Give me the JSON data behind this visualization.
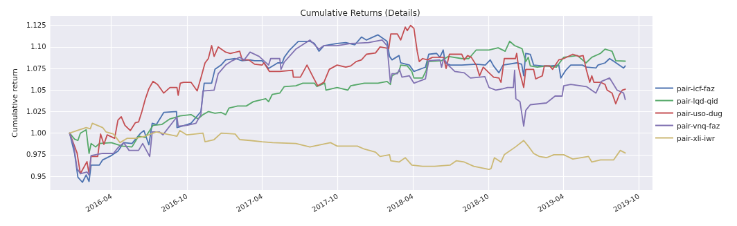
{
  "chart_data": {
    "type": "line",
    "title": "Cumulative Returns (Details)",
    "ylabel": "Cumulative return",
    "xlim": [
      "2015-11-05",
      "2019-11-03"
    ],
    "ylim": [
      0.934,
      1.136
    ],
    "xticks": [
      "2016-04",
      "2016-10",
      "2017-04",
      "2017-10",
      "2018-04",
      "2018-10",
      "2019-04",
      "2019-10"
    ],
    "yticks": [
      0.95,
      0.975,
      {
        "value": 1.0,
        "label": "1.00"
      },
      1.025,
      1.05,
      1.075,
      {
        "value": 1.1,
        "label": "1.10"
      },
      1.125
    ],
    "grid": true,
    "legend": "right",
    "line_style": "solid",
    "marker": "none",
    "series": [
      {
        "name": "pair-icf-faz",
        "color": "#4c72b0",
        "x": [
          "2015-12-22",
          "2016-01-03",
          "2016-01-11",
          "2016-01-22",
          "2016-01-31",
          "2016-02-07",
          "2016-02-12",
          "2016-03-03",
          "2016-03-11",
          "2016-04-01",
          "2016-04-17",
          "2016-05-01",
          "2016-05-21",
          "2016-06-11",
          "2016-06-19",
          "2016-07-01",
          "2016-07-09",
          "2016-07-19",
          "2016-08-06",
          "2016-09-06",
          "2016-09-07",
          "2016-09-19",
          "2016-10-11",
          "2016-11-04",
          "2016-11-12",
          "2016-11-30",
          "2016-12-08",
          "2016-12-23",
          "2017-01-03",
          "2017-01-26",
          "2017-02-12",
          "2017-03-03",
          "2017-03-14",
          "2017-04-01",
          "2017-04-17",
          "2017-05-09",
          "2017-05-20",
          "2017-05-25",
          "2017-06-07",
          "2017-06-28",
          "2017-07-26",
          "2017-08-06",
          "2017-08-17",
          "2017-08-29",
          "2017-09-30",
          "2017-10-21",
          "2017-11-12",
          "2017-11-28",
          "2017-12-10",
          "2018-01-07",
          "2018-01-29",
          "2018-02-04",
          "2018-02-10",
          "2018-02-27",
          "2018-03-03",
          "2018-03-24",
          "2018-04-04",
          "2018-05-02",
          "2018-05-10",
          "2018-05-29",
          "2018-06-06",
          "2018-06-14",
          "2018-06-19",
          "2018-07-01",
          "2018-07-29",
          "2018-09-02",
          "2018-09-24",
          "2018-10-06",
          "2018-10-14",
          "2018-10-27",
          "2018-11-06",
          "2018-12-09",
          "2018-12-21",
          "2018-12-26",
          "2018-12-31",
          "2019-01-11",
          "2019-01-19",
          "2019-02-09",
          "2019-03-01",
          "2019-03-21",
          "2019-03-26",
          "2019-04-07",
          "2019-04-19",
          "2019-05-17",
          "2019-05-27",
          "2019-06-19",
          "2019-06-24",
          "2019-07-11",
          "2019-07-22",
          "2019-08-02",
          "2019-08-25",
          "2019-08-29"
        ],
        "values": [
          1.0,
          0.9765,
          0.949,
          0.943,
          0.9515,
          0.944,
          0.963,
          0.963,
          0.969,
          0.974,
          0.979,
          0.989,
          0.988,
          1.0,
          1.003,
          0.9865,
          1.0115,
          1.01,
          1.024,
          1.025,
          1.0065,
          1.008,
          1.0115,
          1.025,
          1.058,
          1.058,
          1.074,
          1.079,
          1.085,
          1.0865,
          1.084,
          1.085,
          1.084,
          1.084,
          1.075,
          1.0815,
          1.0815,
          1.088,
          1.0965,
          1.1065,
          1.1065,
          1.104,
          1.095,
          1.1015,
          1.104,
          1.105,
          1.1025,
          1.1115,
          1.108,
          1.114,
          1.1065,
          1.089,
          1.085,
          1.09,
          1.0815,
          1.079,
          1.0715,
          1.0765,
          1.0915,
          1.0925,
          1.088,
          1.0965,
          1.0815,
          1.079,
          1.079,
          1.08,
          1.079,
          1.085,
          1.078,
          1.07,
          1.079,
          1.0815,
          1.08,
          1.0665,
          1.0925,
          1.0915,
          1.079,
          1.078,
          1.078,
          1.079,
          1.064,
          1.073,
          1.079,
          1.079,
          1.0765,
          1.0755,
          1.079,
          1.0815,
          1.0865,
          1.083,
          1.0755,
          1.078
        ]
      },
      {
        "name": "pair-lqd-qid",
        "color": "#55a868",
        "x": [
          "2015-12-22",
          "2016-01-03",
          "2016-01-11",
          "2016-01-17",
          "2016-01-31",
          "2016-02-07",
          "2016-02-12",
          "2016-02-23",
          "2016-03-03",
          "2016-04-01",
          "2016-04-27",
          "2016-05-21",
          "2016-06-06",
          "2016-06-22",
          "2016-07-11",
          "2016-08-01",
          "2016-08-21",
          "2016-09-15",
          "2016-10-11",
          "2016-10-28",
          "2016-11-09",
          "2016-11-22",
          "2016-12-08",
          "2016-12-23",
          "2017-01-03",
          "2017-01-11",
          "2017-02-01",
          "2017-02-22",
          "2017-03-11",
          "2017-04-01",
          "2017-04-10",
          "2017-04-17",
          "2017-04-26",
          "2017-05-14",
          "2017-05-25",
          "2017-06-22",
          "2017-07-09",
          "2017-08-06",
          "2017-08-12",
          "2017-08-31",
          "2017-09-03",
          "2017-09-30",
          "2017-10-26",
          "2017-11-02",
          "2017-12-05",
          "2018-01-07",
          "2018-01-29",
          "2018-02-06",
          "2018-02-10",
          "2018-02-27",
          "2018-03-03",
          "2018-03-19",
          "2018-03-30",
          "2018-04-04",
          "2018-04-25",
          "2018-05-04",
          "2018-05-07",
          "2018-06-10",
          "2018-06-26",
          "2018-07-29",
          "2018-08-15",
          "2018-09-02",
          "2018-10-03",
          "2018-10-25",
          "2018-11-11",
          "2018-11-22",
          "2018-12-04",
          "2018-12-22",
          "2018-12-31",
          "2019-01-06",
          "2019-01-11",
          "2019-01-28",
          "2019-02-19",
          "2019-03-15",
          "2019-04-02",
          "2019-05-05",
          "2019-05-26",
          "2019-06-09",
          "2019-06-30",
          "2019-07-11",
          "2019-07-28",
          "2019-08-06",
          "2019-08-29"
        ],
        "values": [
          1.0,
          0.993,
          0.9915,
          1.0,
          1.004,
          0.9765,
          0.988,
          0.984,
          0.988,
          0.989,
          0.985,
          0.984,
          0.9965,
          0.995,
          1.009,
          1.01,
          1.0165,
          1.02,
          1.0215,
          1.0165,
          1.0215,
          1.025,
          1.023,
          1.024,
          1.0215,
          1.029,
          1.0315,
          1.0315,
          1.0365,
          1.039,
          1.04,
          1.0365,
          1.045,
          1.0465,
          1.054,
          1.055,
          1.058,
          1.058,
          1.054,
          1.058,
          1.05,
          1.053,
          1.05,
          1.055,
          1.058,
          1.058,
          1.06,
          1.0565,
          1.0665,
          1.0715,
          1.079,
          1.078,
          1.0715,
          1.064,
          1.064,
          1.073,
          1.083,
          1.084,
          1.089,
          1.0865,
          1.0865,
          1.0965,
          1.0965,
          1.099,
          1.095,
          1.1065,
          1.1015,
          1.098,
          1.083,
          1.088,
          1.078,
          1.0765,
          1.078,
          1.0765,
          1.088,
          1.09,
          1.0815,
          1.088,
          1.0925,
          1.0975,
          1.095,
          1.084,
          1.0835
        ]
      },
      {
        "name": "pair-uso-dug",
        "color": "#c44e52",
        "x": [
          "2015-12-22",
          "2016-01-09",
          "2016-01-17",
          "2016-02-02",
          "2016-02-07",
          "2016-02-12",
          "2016-02-28",
          "2016-03-06",
          "2016-03-14",
          "2016-03-22",
          "2016-04-09",
          "2016-04-17",
          "2016-04-25",
          "2016-05-04",
          "2016-05-17",
          "2016-05-29",
          "2016-06-06",
          "2016-06-14",
          "2016-06-22",
          "2016-07-01",
          "2016-07-11",
          "2016-07-22",
          "2016-08-06",
          "2016-08-21",
          "2016-09-07",
          "2016-09-10",
          "2016-09-15",
          "2016-09-23",
          "2016-10-11",
          "2016-10-26",
          "2016-11-04",
          "2016-11-14",
          "2016-11-22",
          "2016-11-30",
          "2016-12-06",
          "2016-12-16",
          "2017-01-03",
          "2017-01-14",
          "2017-02-06",
          "2017-02-12",
          "2017-02-28",
          "2017-03-14",
          "2017-04-01",
          "2017-04-06",
          "2017-04-19",
          "2017-05-14",
          "2017-06-14",
          "2017-06-16",
          "2017-07-03",
          "2017-07-19",
          "2017-08-04",
          "2017-08-14",
          "2017-08-29",
          "2017-09-11",
          "2017-09-30",
          "2017-10-21",
          "2017-11-02",
          "2017-11-15",
          "2017-11-28",
          "2017-12-10",
          "2018-01-01",
          "2018-01-12",
          "2018-01-24",
          "2018-02-02",
          "2018-02-07",
          "2018-02-23",
          "2018-03-03",
          "2018-03-14",
          "2018-03-19",
          "2018-03-27",
          "2018-04-04",
          "2018-04-12",
          "2018-04-17",
          "2018-04-25",
          "2018-05-07",
          "2018-05-19",
          "2018-06-15",
          "2018-06-21",
          "2018-06-29",
          "2018-07-29",
          "2018-08-04",
          "2018-08-12",
          "2018-08-21",
          "2018-09-02",
          "2018-09-10",
          "2018-09-19",
          "2018-10-03",
          "2018-10-14",
          "2018-10-27",
          "2018-11-01",
          "2018-11-09",
          "2018-12-06",
          "2018-12-09",
          "2018-12-14",
          "2018-12-26",
          "2018-12-31",
          "2019-01-19",
          "2019-01-24",
          "2019-02-09",
          "2019-02-14",
          "2019-02-27",
          "2019-03-06",
          "2019-03-21",
          "2019-04-02",
          "2019-04-24",
          "2019-05-09",
          "2019-05-19",
          "2019-05-27",
          "2019-06-04",
          "2019-06-09",
          "2019-06-14",
          "2019-06-30",
          "2019-07-11",
          "2019-07-16",
          "2019-07-28",
          "2019-08-06",
          "2019-08-14",
          "2019-08-22",
          "2019-08-29"
        ],
        "values": [
          1.0,
          0.977,
          0.953,
          0.967,
          0.953,
          0.973,
          0.973,
          0.999,
          0.987,
          0.998,
          0.994,
          1.015,
          1.019,
          1.009,
          1.003,
          1.012,
          1.013,
          1.025,
          1.039,
          1.0515,
          1.06,
          1.0565,
          1.0465,
          1.053,
          1.053,
          1.044,
          1.058,
          1.059,
          1.059,
          1.049,
          1.064,
          1.0815,
          1.0865,
          1.1015,
          1.089,
          1.1,
          1.094,
          1.0925,
          1.095,
          1.085,
          1.085,
          1.08,
          1.079,
          1.0815,
          1.0715,
          1.0715,
          1.073,
          1.065,
          1.065,
          1.079,
          1.064,
          1.055,
          1.059,
          1.074,
          1.079,
          1.0765,
          1.078,
          1.083,
          1.085,
          1.0915,
          1.093,
          1.1,
          1.099,
          1.098,
          1.115,
          1.115,
          1.108,
          1.123,
          1.119,
          1.125,
          1.1215,
          1.095,
          1.083,
          1.0865,
          1.085,
          1.088,
          1.088,
          1.075,
          1.0915,
          1.0915,
          1.085,
          1.09,
          1.088,
          1.079,
          1.0665,
          1.0765,
          1.07,
          1.065,
          1.064,
          1.059,
          1.0865,
          1.0865,
          1.0925,
          1.075,
          1.053,
          1.074,
          1.074,
          1.063,
          1.0665,
          1.078,
          1.078,
          1.074,
          1.085,
          1.0865,
          1.0915,
          1.089,
          1.09,
          1.073,
          1.059,
          1.0665,
          1.059,
          1.059,
          1.0565,
          1.05,
          1.0465,
          1.034,
          1.044,
          1.05,
          1.051
        ]
      },
      {
        "name": "pair-vnq-faz",
        "color": "#8172b2",
        "x": [
          "2015-12-22",
          "2016-01-01",
          "2016-01-09",
          "2016-01-17",
          "2016-02-02",
          "2016-02-07",
          "2016-02-12",
          "2016-03-11",
          "2016-04-06",
          "2016-04-17",
          "2016-05-01",
          "2016-05-14",
          "2016-06-06",
          "2016-06-16",
          "2016-07-03",
          "2016-07-09",
          "2016-07-26",
          "2016-08-04",
          "2016-09-07",
          "2016-09-10",
          "2016-10-01",
          "2016-10-23",
          "2016-11-04",
          "2016-11-09",
          "2016-12-06",
          "2016-12-16",
          "2017-01-03",
          "2017-01-19",
          "2017-02-06",
          "2017-02-17",
          "2017-03-03",
          "2017-03-25",
          "2017-04-17",
          "2017-04-22",
          "2017-05-14",
          "2017-05-17",
          "2017-05-25",
          "2017-06-22",
          "2017-07-26",
          "2017-08-17",
          "2017-08-29",
          "2017-09-30",
          "2017-11-02",
          "2017-12-15",
          "2018-01-17",
          "2018-01-29",
          "2018-02-06",
          "2018-02-10",
          "2018-02-23",
          "2018-02-28",
          "2018-03-06",
          "2018-03-24",
          "2018-04-04",
          "2018-05-02",
          "2018-05-10",
          "2018-06-06",
          "2018-06-10",
          "2018-06-15",
          "2018-06-26",
          "2018-07-12",
          "2018-08-04",
          "2018-08-19",
          "2018-09-23",
          "2018-10-03",
          "2018-10-19",
          "2018-11-06",
          "2018-11-17",
          "2018-12-01",
          "2018-12-04",
          "2018-12-07",
          "2018-12-17",
          "2018-12-26",
          "2018-12-31",
          "2019-01-11",
          "2019-02-19",
          "2019-03-12",
          "2019-03-29",
          "2019-04-02",
          "2019-04-19",
          "2019-05-27",
          "2019-06-19",
          "2019-07-02",
          "2019-07-22",
          "2019-08-09",
          "2019-08-25",
          "2019-08-29"
        ],
        "values": [
          1.0,
          0.985,
          0.959,
          0.953,
          0.955,
          0.9515,
          0.974,
          0.9765,
          0.9765,
          0.983,
          0.989,
          0.98,
          0.98,
          0.988,
          0.973,
          1.0015,
          1.0015,
          0.998,
          1.019,
          1.008,
          1.009,
          1.0115,
          1.0215,
          1.049,
          1.05,
          1.069,
          1.079,
          1.084,
          1.088,
          1.085,
          1.094,
          1.089,
          1.079,
          1.0865,
          1.0865,
          1.074,
          1.0825,
          1.0975,
          1.108,
          1.0975,
          1.1015,
          1.1015,
          1.104,
          1.105,
          1.108,
          1.1015,
          1.059,
          1.069,
          1.069,
          1.074,
          1.065,
          1.0665,
          1.058,
          1.063,
          1.084,
          1.085,
          1.0765,
          1.0865,
          1.079,
          1.0715,
          1.07,
          1.064,
          1.0655,
          1.053,
          1.05,
          1.0515,
          1.053,
          1.053,
          1.073,
          1.04,
          1.0365,
          1.008,
          1.0265,
          1.033,
          1.035,
          1.043,
          1.043,
          1.055,
          1.0565,
          1.054,
          1.0465,
          1.06,
          1.064,
          1.05,
          1.0465,
          1.039
        ]
      },
      {
        "name": "pair-xli-iwr",
        "color": "#ccb974",
        "x": [
          "2015-12-22",
          "2016-01-09",
          "2016-01-31",
          "2016-02-10",
          "2016-02-15",
          "2016-03-11",
          "2016-03-19",
          "2016-04-06",
          "2016-04-22",
          "2016-05-09",
          "2016-05-30",
          "2016-06-22",
          "2016-07-19",
          "2016-09-07",
          "2016-09-14",
          "2016-10-01",
          "2016-11-09",
          "2016-11-14",
          "2016-12-06",
          "2016-12-23",
          "2017-01-26",
          "2017-02-06",
          "2017-03-03",
          "2017-04-01",
          "2017-04-27",
          "2017-06-22",
          "2017-07-26",
          "2017-09-14",
          "2017-09-30",
          "2017-11-18",
          "2017-12-05",
          "2018-01-01",
          "2018-01-12",
          "2018-02-04",
          "2018-02-07",
          "2018-02-27",
          "2018-03-14",
          "2018-03-30",
          "2018-04-25",
          "2018-05-24",
          "2018-07-01",
          "2018-07-16",
          "2018-08-04",
          "2018-08-27",
          "2018-10-03",
          "2018-10-08",
          "2018-10-16",
          "2018-11-01",
          "2018-11-09",
          "2018-12-06",
          "2018-12-26",
          "2019-01-06",
          "2019-01-19",
          "2019-02-02",
          "2019-02-19",
          "2019-03-09",
          "2019-04-02",
          "2019-04-24",
          "2019-06-01",
          "2019-06-09",
          "2019-06-30",
          "2019-08-01",
          "2019-08-17",
          "2019-08-29"
        ],
        "values": [
          1.0,
          1.003,
          1.0065,
          1.005,
          1.0115,
          1.0065,
          1.0015,
          0.999,
          0.989,
          0.994,
          0.994,
          0.9965,
          1.0015,
          0.9965,
          1.003,
          0.998,
          1.0,
          0.99,
          0.9925,
          1.0,
          0.999,
          0.9925,
          0.9915,
          0.99,
          0.989,
          0.988,
          0.984,
          0.989,
          0.985,
          0.985,
          0.9815,
          0.978,
          0.973,
          0.975,
          0.968,
          0.9665,
          0.9715,
          0.963,
          0.9615,
          0.9615,
          0.963,
          0.968,
          0.9665,
          0.9615,
          0.958,
          0.959,
          0.9715,
          0.9665,
          0.975,
          0.984,
          0.9915,
          0.985,
          0.9765,
          0.973,
          0.9715,
          0.975,
          0.975,
          0.97,
          0.973,
          0.9665,
          0.969,
          0.969,
          0.98,
          0.977
        ]
      }
    ]
  }
}
